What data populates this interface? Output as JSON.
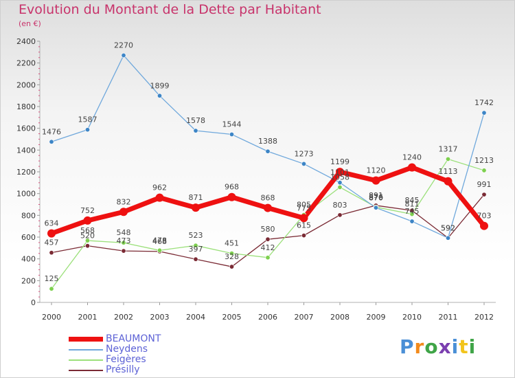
{
  "header": {
    "title": "Evolution du Montant de la Dette par Habitant",
    "subtitle": "(en €)"
  },
  "logo": {
    "text": "Proxiti",
    "letter_colors": [
      "#4a8fd6",
      "#f28a1c",
      "#3fa447",
      "#7b3fb0",
      "#4a8fd6",
      "#f2c41c",
      "#3fa447"
    ]
  },
  "chart_data": {
    "type": "line",
    "title": "Evolution du Montant de la Dette par Habitant",
    "subtitle": "(en €)",
    "xlabel": "",
    "ylabel": "",
    "x": [
      "2000",
      "2001",
      "2002",
      "2003",
      "2004",
      "2005",
      "2006",
      "2007",
      "2008",
      "2009",
      "2010",
      "2011",
      "2012"
    ],
    "ylim": [
      0,
      2400
    ],
    "yticks": [
      0,
      200,
      400,
      600,
      800,
      1000,
      1200,
      1400,
      1600,
      1800,
      2000,
      2200,
      2400
    ],
    "grid": false,
    "legend_position": "bottom-left",
    "series": [
      {
        "name": "Présilly",
        "color": "#7a2a34",
        "marker_color": "#7a2a34",
        "values": [
          457,
          520,
          473,
          468,
          397,
          328,
          580,
          615,
          803,
          891,
          845,
          592,
          991
        ],
        "labels": [
          "457",
          "520",
          "473",
          "468",
          "397",
          "328",
          "580",
          "615",
          "803",
          "891",
          "845",
          "592",
          "991"
        ]
      },
      {
        "name": "Feigères",
        "color": "#9be07a",
        "marker_color": "#7ed04f",
        "values": [
          125,
          568,
          548,
          478,
          523,
          451,
          412,
          805,
          1058,
          876,
          811,
          1317,
          1213
        ],
        "labels": [
          "125",
          "568",
          "548",
          "478",
          "523",
          "451",
          "412",
          "805",
          "1058",
          "876",
          "811",
          "1317",
          "1213"
        ]
      },
      {
        "name": "Neydens",
        "color": "#6fa8dc",
        "marker_color": "#3d85c6",
        "values": [
          1476,
          1587,
          2270,
          1899,
          1578,
          1544,
          1388,
          1273,
          1101,
          870,
          745,
          592,
          1742
        ],
        "labels": [
          "1476",
          "1587",
          "2270",
          "1899",
          "1578",
          "1544",
          "1388",
          "1273",
          "1101",
          "870",
          "745",
          "592",
          "1742"
        ]
      },
      {
        "name": "BEAUMONT",
        "color": "#ee1111",
        "marker_color": "#ee1111",
        "values": [
          634,
          752,
          832,
          962,
          871,
          968,
          868,
          775,
          1199,
          1120,
          1240,
          1113,
          703
        ],
        "labels": [
          "634",
          "752",
          "832",
          "962",
          "871",
          "968",
          "868",
          "775",
          "1199",
          "1120",
          "1240",
          "1113",
          "703"
        ]
      }
    ],
    "legend": [
      "BEAUMONT",
      "Neydens",
      "Feigères",
      "Présilly"
    ]
  }
}
